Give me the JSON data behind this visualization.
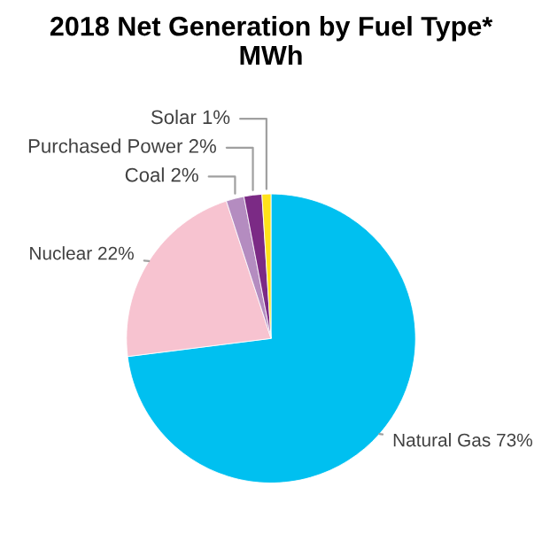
{
  "chart_data": {
    "type": "pie",
    "title": "2018 Net Generation by Fuel Type*\nMWh",
    "categories": [
      "Natural Gas 73%",
      "Nuclear 22%",
      "Coal 2%",
      "Purchased Power 2%",
      "Solar 1%"
    ],
    "values": [
      73,
      22,
      2,
      2,
      1
    ],
    "colors": [
      "#00c0f0",
      "#f7c3d0",
      "#b48cc0",
      "#7b2a85",
      "#ffe21a"
    ]
  }
}
